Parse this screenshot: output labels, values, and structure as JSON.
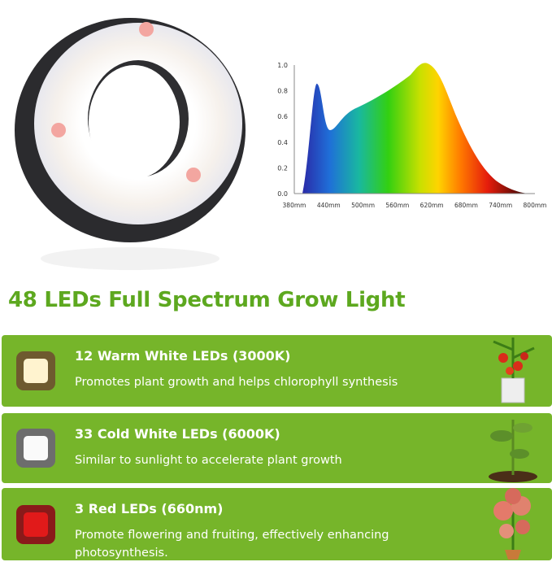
{
  "spectrum_chart": {
    "xticks": [
      "380mm",
      "440mm",
      "500mm",
      "560mm",
      "620mm",
      "680mm",
      "740mm",
      "800mm"
    ],
    "yticks": [
      "0.0",
      "0.2",
      "0.4",
      "0.6",
      "0.8",
      "1.0"
    ]
  },
  "heading": "48 LEDs Full Spectrum Grow Light",
  "features": [
    {
      "title": "12 Warm White LEDs (3000K)",
      "description": "Promotes plant growth and helps chlorophyll synthesis"
    },
    {
      "title": "33 Cold White LEDs (6000K)",
      "description": "Similar to sunlight to accelerate plant growth"
    },
    {
      "title": "3 Red LEDs (660nm)",
      "description": "Promote flowering and fruiting, effectively enhancing photosynthesis."
    }
  ]
}
